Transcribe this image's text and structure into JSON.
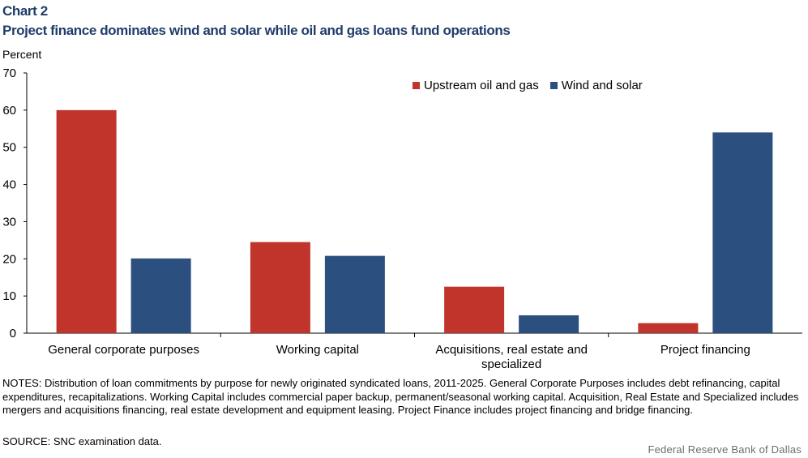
{
  "header": {
    "chart_label": "Chart 2",
    "title": "Project finance dominates wind and solar while oil and gas loans fund operations",
    "y_unit": "Percent"
  },
  "chart_data": {
    "type": "bar",
    "categories": [
      "General corporate purposes",
      "Working capital",
      "Acquisitions, real estate and specialized",
      "Project financing"
    ],
    "category_lines": [
      [
        "General corporate purposes"
      ],
      [
        "Working capital"
      ],
      [
        "Acquisitions, real estate and",
        "specialized"
      ],
      [
        "Project financing"
      ]
    ],
    "series": [
      {
        "name": "Upstream oil and gas",
        "color": "#c0342c",
        "values": [
          60,
          24.5,
          12.5,
          2.7
        ]
      },
      {
        "name": "Wind and solar",
        "color": "#2b4f7e",
        "values": [
          20.1,
          20.8,
          4.8,
          54
        ]
      }
    ],
    "ylim": [
      0,
      70
    ],
    "yticks": [
      "0",
      "10",
      "20",
      "30",
      "40",
      "50",
      "60",
      "70"
    ],
    "grid": false,
    "legend_position": "top-right"
  },
  "footer": {
    "notes": "NOTES: Distribution of loan commitments by purpose for newly originated syndicated loans, 2011-2025. General Corporate Purposes includes debt refinancing, capital expenditures, recapitalizations. Working Capital includes commercial paper backup, permanent/seasonal working capital. Acquisition, Real Estate and Specialized includes mergers and acquisitions financing, real estate development and equipment leasing. Project Finance includes project financing and bridge financing.",
    "source": "SOURCE: SNC examination data.",
    "credit": "Federal Reserve Bank of Dallas"
  }
}
